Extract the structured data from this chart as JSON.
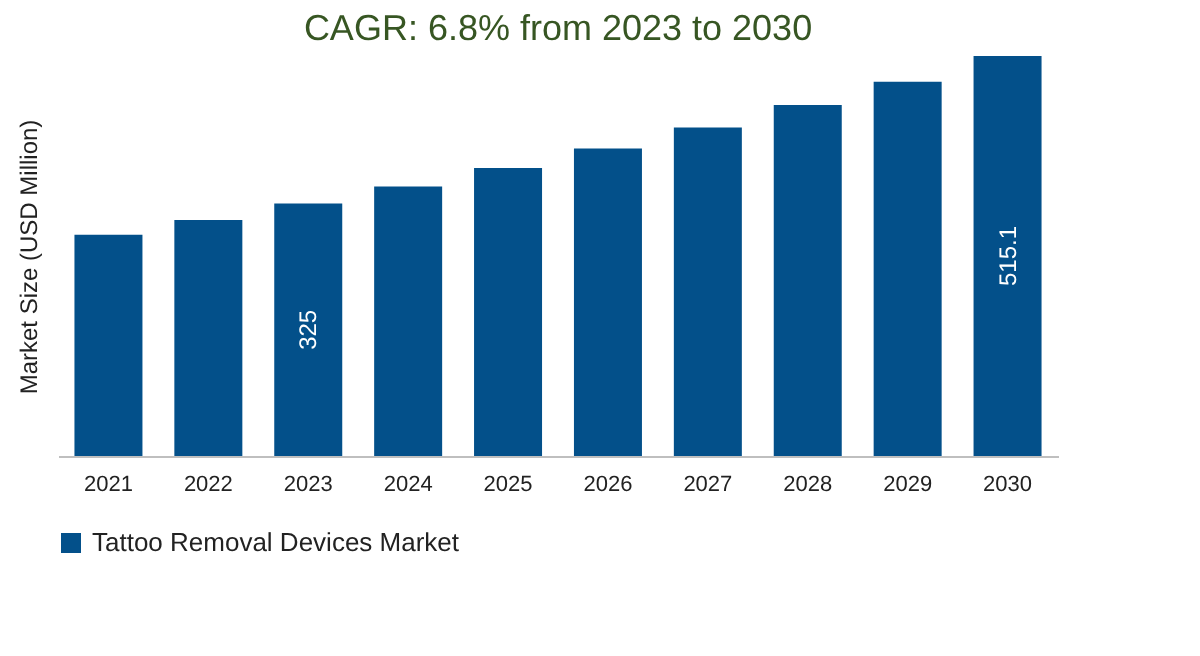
{
  "chart_data": {
    "type": "bar",
    "title": "CAGR: 6.8% from 2023 to 2030",
    "ylabel": "Market Size (USD Million)",
    "categories": [
      "2021",
      "2022",
      "2023",
      "2024",
      "2025",
      "2026",
      "2027",
      "2028",
      "2029",
      "2030"
    ],
    "series": [
      {
        "name": "Tattoo Removal Devices Market",
        "color": "#03508a",
        "values": [
          285,
          304,
          325,
          347,
          371,
          396,
          423,
          452,
          482,
          515.1
        ],
        "value_labels": [
          null,
          null,
          "325",
          null,
          null,
          null,
          null,
          null,
          null,
          "515.1"
        ]
      }
    ],
    "legend": "bottom",
    "grid": false
  }
}
